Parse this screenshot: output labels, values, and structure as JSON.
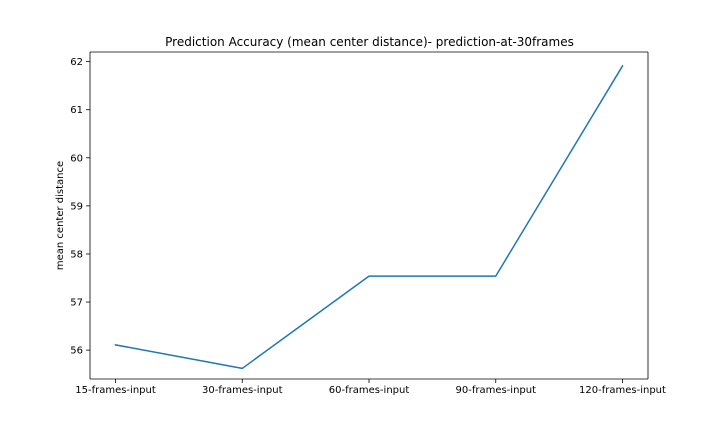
{
  "chart_data": {
    "type": "line",
    "title": "Prediction Accuracy (mean center distance)- prediction-at-30frames",
    "xlabel": "",
    "ylabel": "mean center distance",
    "categories": [
      "15-frames-input",
      "30-frames-input",
      "60-frames-input",
      "90-frames-input",
      "120-frames-input"
    ],
    "series": [
      {
        "values": [
          56.11,
          55.62,
          57.54,
          57.54,
          61.91
        ],
        "color": "#1f77b4"
      }
    ],
    "yticks": [
      56,
      57,
      58,
      59,
      60,
      61,
      62
    ],
    "ylim": [
      55.4,
      62.2
    ],
    "grid": false,
    "legend": "none"
  }
}
